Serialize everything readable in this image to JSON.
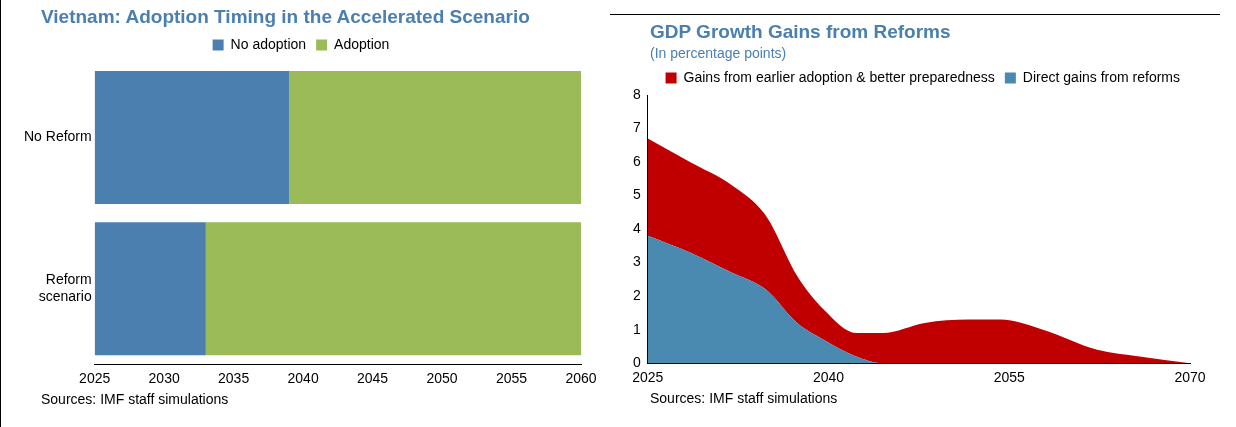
{
  "chart_data": [
    {
      "type": "bar",
      "title": "Vietnam: Adoption Timing in the Accelerated Scenario",
      "orientation": "horizontal",
      "categories": [
        "No Reform",
        "Reform scenario"
      ],
      "series": [
        {
          "name": "No adoption",
          "color": "#4a7fb0",
          "values": [
            14,
            8
          ],
          "base": [
            2025,
            2025
          ]
        },
        {
          "name": "Adoption",
          "color": "#9bbb59",
          "values": [
            21,
            27
          ],
          "base": [
            2039,
            2033
          ]
        }
      ],
      "xlim": [
        2025,
        2060
      ],
      "xticks": [
        2025,
        2030,
        2035,
        2040,
        2045,
        2050,
        2055,
        2060
      ],
      "legend": "top",
      "annotations": [
        "Sources: IMF staff simulations"
      ]
    },
    {
      "type": "area",
      "title": "GDP Growth Gains from Reforms",
      "subtitle": "(In percentage points)",
      "stacked": true,
      "x": [
        2025,
        2028.5,
        2032,
        2034.8,
        2037.4,
        2039.6,
        2042.3,
        2044.5,
        2048,
        2051.6,
        2054.3,
        2057.8,
        2062.3,
        2065.8,
        2070
      ],
      "series": [
        {
          "name": "Direct gains from reforms",
          "color": "#4a89b0",
          "values": [
            3.8,
            3.3,
            2.7,
            2.2,
            1.2,
            0.7,
            0.2,
            0,
            0,
            0,
            0,
            0,
            0,
            0,
            0
          ]
        },
        {
          "name": "Gains from earlier adoption & better preparedness",
          "color": "#c00000",
          "values": [
            2.9,
            2.7,
            2.6,
            2.2,
            1.4,
            0.9,
            0.7,
            0.9,
            1.2,
            1.3,
            1.3,
            1.0,
            0.4,
            0.2,
            0
          ]
        }
      ],
      "xlim": [
        2025,
        2070
      ],
      "xticks": [
        2025,
        2040,
        2055,
        2070
      ],
      "ylim": [
        0,
        8
      ],
      "yticks": [
        0,
        1,
        2,
        3,
        4,
        5,
        6,
        7,
        8
      ],
      "legend": "top right",
      "annotations": [
        "Sources: IMF staff simulations"
      ]
    }
  ]
}
